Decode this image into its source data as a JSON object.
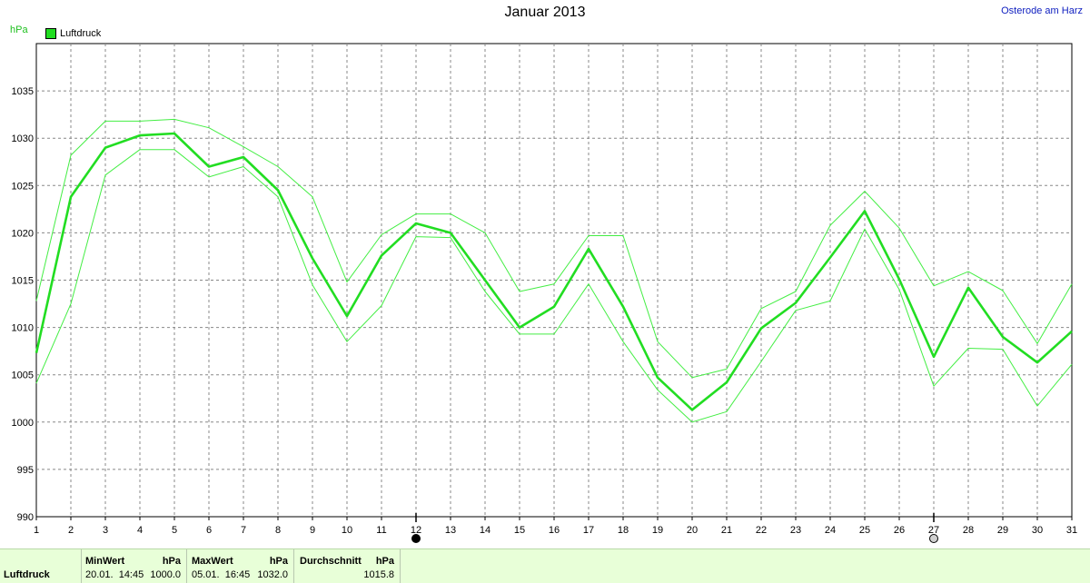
{
  "title": "Januar 2013",
  "location": "Osterode am Harz",
  "unit": "hPa",
  "legend": "Luftdruck",
  "colors": {
    "main": "#22dd22",
    "band": "#44ee44",
    "grid": "#888888",
    "location": "#1020c0"
  },
  "moon_markers": [
    {
      "day": 12,
      "phase": "full-moon-icon",
      "fill": "#000000"
    },
    {
      "day": 27,
      "phase": "new-moon-icon",
      "fill": "#d0d0d0"
    }
  ],
  "stats": {
    "row_label": "Luftdruck",
    "min": {
      "header": "MinWert",
      "unit": "hPa",
      "time": "20.01.  14:45",
      "value": "1000.0"
    },
    "max": {
      "header": "MaxWert",
      "unit": "hPa",
      "time": "05.01.  16:45",
      "value": "1032.0"
    },
    "avg": {
      "header": "Durchschnitt",
      "unit": "hPa",
      "value": "1015.8"
    }
  },
  "chart_data": {
    "type": "line",
    "title": "Januar 2013",
    "ylabel": "hPa",
    "xlim": [
      1,
      31
    ],
    "ylim": [
      990,
      1040
    ],
    "yticks": [
      990,
      995,
      1000,
      1005,
      1010,
      1015,
      1020,
      1025,
      1030,
      1035
    ],
    "x": [
      1,
      2,
      3,
      4,
      5,
      6,
      7,
      8,
      9,
      10,
      11,
      12,
      13,
      14,
      15,
      16,
      17,
      18,
      19,
      20,
      21,
      22,
      23,
      24,
      25,
      26,
      27,
      28,
      29,
      30,
      31
    ],
    "grid": true,
    "legend_position": "top-left",
    "series": [
      {
        "name": "Luftdruck",
        "role": "mean",
        "values": [
          1007.3,
          1023.8,
          1029.0,
          1030.3,
          1030.5,
          1027.0,
          1028.0,
          1024.5,
          1017.3,
          1011.2,
          1017.6,
          1021.0,
          1020.0,
          1015.0,
          1010.0,
          1012.2,
          1018.3,
          1012.2,
          1004.7,
          1001.3,
          1004.2,
          1009.9,
          1012.6,
          1017.4,
          1022.3,
          1015.1,
          1006.9,
          1014.2,
          1009.0,
          1006.3,
          1009.6
        ]
      },
      {
        "role": "max",
        "values": [
          1012.8,
          1028.2,
          1031.8,
          1031.8,
          1032.0,
          1031.1,
          1029.1,
          1027.0,
          1023.8,
          1014.8,
          1019.8,
          1022.0,
          1022.0,
          1020.0,
          1013.8,
          1014.6,
          1019.7,
          1019.7,
          1008.5,
          1004.7,
          1005.6,
          1012.0,
          1013.8,
          1020.8,
          1024.4,
          1020.5,
          1014.4,
          1015.9,
          1013.9,
          1008.3,
          1014.6
        ]
      },
      {
        "role": "min",
        "values": [
          1004.1,
          1012.5,
          1026.1,
          1028.8,
          1028.8,
          1025.9,
          1027.0,
          1023.8,
          1014.5,
          1008.5,
          1012.3,
          1019.6,
          1019.5,
          1013.8,
          1009.3,
          1009.3,
          1014.6,
          1008.5,
          1003.4,
          1000.0,
          1001.1,
          1006.4,
          1011.8,
          1012.8,
          1020.4,
          1014.0,
          1003.8,
          1007.8,
          1007.7,
          1001.7,
          1006.1
        ]
      }
    ]
  }
}
